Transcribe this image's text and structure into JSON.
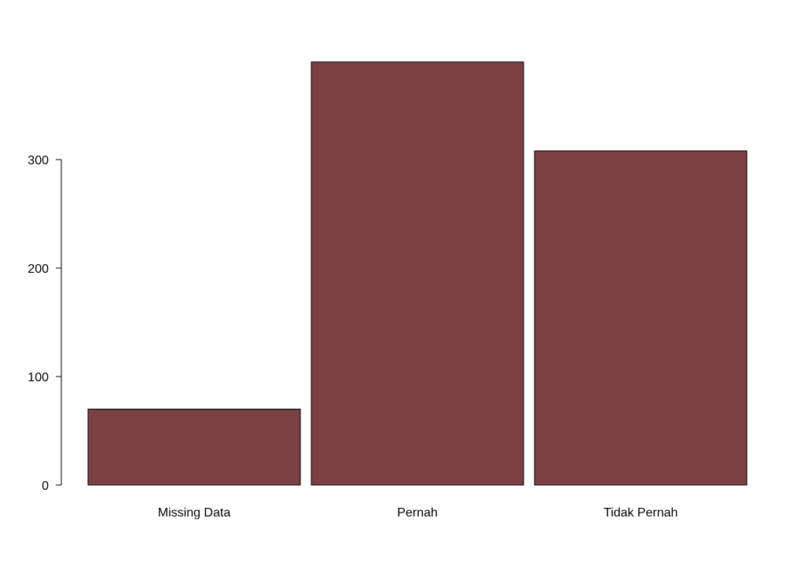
{
  "chart_data": {
    "type": "bar",
    "categories": [
      "Missing Data",
      "Pernah",
      "Tidak Pernah"
    ],
    "values": [
      70,
      390,
      308
    ],
    "yticks": [
      0,
      100,
      200,
      300
    ],
    "ylim": [
      0,
      400
    ],
    "bar_color": "#7a4044",
    "bar_edge": "#000000",
    "grid": false,
    "legend": "none"
  }
}
